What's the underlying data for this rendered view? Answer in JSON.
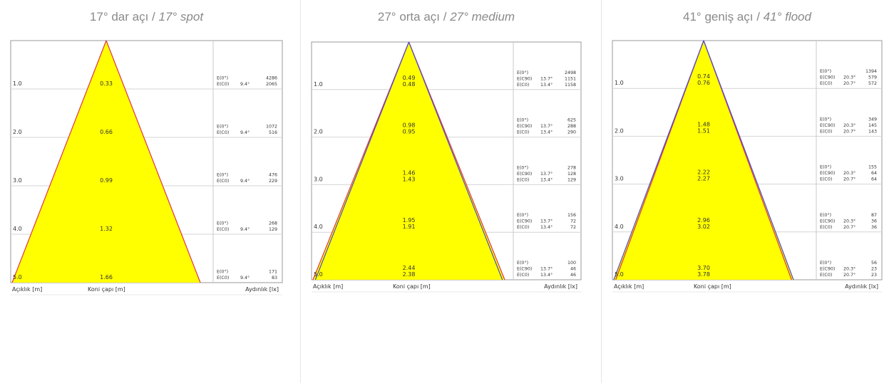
{
  "panels": [
    {
      "title_tr": "17° dar açı",
      "title_sep": " / ",
      "title_en": "17° spot",
      "footer": {
        "left": "Açıklık [m]",
        "mid": "Koni çapı [m]",
        "right": "Aydınlık [lx]"
      },
      "line_colors": [
        "#e0344a"
      ],
      "rows": [
        {
          "dist": "1.0",
          "diam": [
            "0.33"
          ],
          "lines": [
            {
              "label": "E(0°)",
              "angle": "",
              "lux": "4286"
            },
            {
              "label": "E(C0)",
              "angle": "9.4°",
              "lux": "2065"
            }
          ]
        },
        {
          "dist": "2.0",
          "diam": [
            "0.66"
          ],
          "lines": [
            {
              "label": "E(0°)",
              "angle": "",
              "lux": "1072"
            },
            {
              "label": "E(C0)",
              "angle": "9.4°",
              "lux": "516"
            }
          ]
        },
        {
          "dist": "3.0",
          "diam": [
            "0.99"
          ],
          "lines": [
            {
              "label": "E(0°)",
              "angle": "",
              "lux": "476"
            },
            {
              "label": "E(C0)",
              "angle": "9.4°",
              "lux": "229"
            }
          ]
        },
        {
          "dist": "4.0",
          "diam": [
            "1.32"
          ],
          "lines": [
            {
              "label": "E(0°)",
              "angle": "",
              "lux": "268"
            },
            {
              "label": "E(C0)",
              "angle": "9.4°",
              "lux": "129"
            }
          ]
        },
        {
          "dist": "5.0",
          "diam": [
            "1.66"
          ],
          "lines": [
            {
              "label": "E(0°)",
              "angle": "",
              "lux": "171"
            },
            {
              "label": "E(C0)",
              "angle": "9.4°",
              "lux": "83"
            }
          ]
        }
      ]
    },
    {
      "title_tr": "27° orta açı",
      "title_sep": " / ",
      "title_en": "27° medium",
      "footer": {
        "left": "Açıklık [m]",
        "mid": "Koni çapı [m]",
        "right": "Aydınlık [lx]"
      },
      "line_colors": [
        "#e0344a",
        "#4a4ad0"
      ],
      "rows": [
        {
          "dist": "1.0",
          "diam": [
            "0.49",
            "0.48"
          ],
          "lines": [
            {
              "label": "E(0°)",
              "angle": "",
              "lux": "2498"
            },
            {
              "label": "E(C90)",
              "angle": "13.7°",
              "lux": "1151"
            },
            {
              "label": "E(C0)",
              "angle": "13.4°",
              "lux": "1158"
            }
          ]
        },
        {
          "dist": "2.0",
          "diam": [
            "0.98",
            "0.95"
          ],
          "lines": [
            {
              "label": "E(0°)",
              "angle": "",
              "lux": "625"
            },
            {
              "label": "E(C90)",
              "angle": "13.7°",
              "lux": "288"
            },
            {
              "label": "E(C0)",
              "angle": "13.4°",
              "lux": "290"
            }
          ]
        },
        {
          "dist": "3.0",
          "diam": [
            "1.46",
            "1.43"
          ],
          "lines": [
            {
              "label": "E(0°)",
              "angle": "",
              "lux": "278"
            },
            {
              "label": "E(C90)",
              "angle": "13.7°",
              "lux": "128"
            },
            {
              "label": "E(C0)",
              "angle": "13.4°",
              "lux": "129"
            }
          ]
        },
        {
          "dist": "4.0",
          "diam": [
            "1.95",
            "1.91"
          ],
          "lines": [
            {
              "label": "E(0°)",
              "angle": "",
              "lux": "156"
            },
            {
              "label": "E(C90)",
              "angle": "13.7°",
              "lux": "72"
            },
            {
              "label": "E(C0)",
              "angle": "13.4°",
              "lux": "72"
            }
          ]
        },
        {
          "dist": "5.0",
          "diam": [
            "2.44",
            "2.38"
          ],
          "lines": [
            {
              "label": "E(0°)",
              "angle": "",
              "lux": "100"
            },
            {
              "label": "E(C90)",
              "angle": "13.7°",
              "lux": "46"
            },
            {
              "label": "E(C0)",
              "angle": "13.4°",
              "lux": "46"
            }
          ]
        }
      ]
    },
    {
      "title_tr": "41° geniş açı",
      "title_sep": " / ",
      "title_en": "41° flood",
      "footer": {
        "left": "Açıklık [m]",
        "mid": "Koni çapı [m]",
        "right": "Aydınlık [lx]"
      },
      "line_colors": [
        "#e0344a",
        "#4a4ad0"
      ],
      "rows": [
        {
          "dist": "1.0",
          "diam": [
            "0.74",
            "0.76"
          ],
          "lines": [
            {
              "label": "E(0°)",
              "angle": "",
              "lux": "1394"
            },
            {
              "label": "E(C90)",
              "angle": "20.3°",
              "lux": "579"
            },
            {
              "label": "E(C0)",
              "angle": "20.7°",
              "lux": "572"
            }
          ]
        },
        {
          "dist": "2.0",
          "diam": [
            "1.48",
            "1.51"
          ],
          "lines": [
            {
              "label": "E(0°)",
              "angle": "",
              "lux": "349"
            },
            {
              "label": "E(C90)",
              "angle": "20.3°",
              "lux": "145"
            },
            {
              "label": "E(C0)",
              "angle": "20.7°",
              "lux": "143"
            }
          ]
        },
        {
          "dist": "3.0",
          "diam": [
            "2.22",
            "2.27"
          ],
          "lines": [
            {
              "label": "E(0°)",
              "angle": "",
              "lux": "155"
            },
            {
              "label": "E(C90)",
              "angle": "20.3°",
              "lux": "64"
            },
            {
              "label": "E(C0)",
              "angle": "20.7°",
              "lux": "64"
            }
          ]
        },
        {
          "dist": "4.0",
          "diam": [
            "2.96",
            "3.02"
          ],
          "lines": [
            {
              "label": "E(0°)",
              "angle": "",
              "lux": "87"
            },
            {
              "label": "E(C90)",
              "angle": "20.3°",
              "lux": "36"
            },
            {
              "label": "E(C0)",
              "angle": "20.7°",
              "lux": "36"
            }
          ]
        },
        {
          "dist": "5.0",
          "diam": [
            "3.70",
            "3.78"
          ],
          "lines": [
            {
              "label": "E(0°)",
              "angle": "",
              "lux": "56"
            },
            {
              "label": "E(C90)",
              "angle": "20.3°",
              "lux": "23"
            },
            {
              "label": "E(C0)",
              "angle": "20.7°",
              "lux": "23"
            }
          ]
        }
      ]
    }
  ]
}
